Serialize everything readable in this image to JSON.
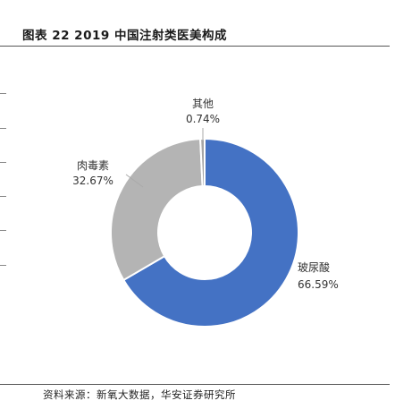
{
  "page": {
    "title": "图表 22 2019 中国注射类医美构成",
    "source": "资料来源：新氧大数据，华安证券研究所"
  },
  "chart_data": {
    "type": "donut",
    "title": "图表 22 2019 中国注射类医美构成",
    "slices": [
      {
        "label": "玻尿酸",
        "value": 66.59,
        "value_label": "66.59%",
        "color": "#4472C4"
      },
      {
        "label": "肉毒素",
        "value": 32.67,
        "value_label": "32.67%",
        "color": "#B4B4B4"
      },
      {
        "label": "其他",
        "value": 0.74,
        "value_label": "0.74%",
        "color": "#A5A5A5"
      }
    ],
    "start_angle_deg": 0,
    "direction": "clockwise"
  }
}
